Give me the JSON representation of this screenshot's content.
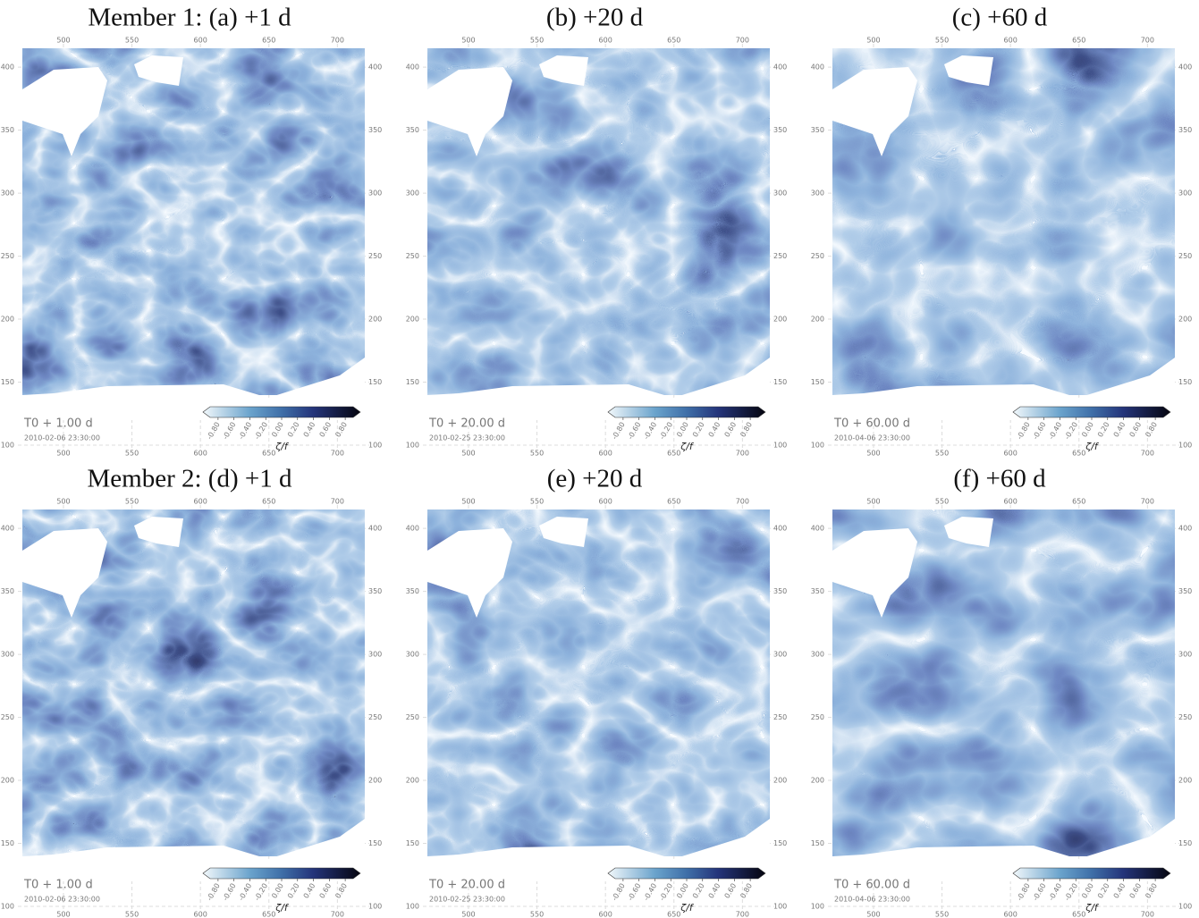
{
  "panels": [
    {
      "title": "Member 1: (a) +1 d",
      "time": "T0 + 1.00 d",
      "date": "2010-02-06 23:30:00"
    },
    {
      "title": "(b) +20 d",
      "time": "T0 + 20.00 d",
      "date": "2010-02-25 23:30:00"
    },
    {
      "title": "(c) +60 d",
      "time": "T0 + 60.00 d",
      "date": "2010-04-06 23:30:00"
    },
    {
      "title": "Member 2: (d) +1 d",
      "time": "T0 + 1.00 d",
      "date": "2010-02-06 23:30:00"
    },
    {
      "title": "(e) +20 d",
      "time": "T0 + 20.00 d",
      "date": "2010-02-25 23:30:00"
    },
    {
      "title": "(f) +60 d",
      "time": "T0 + 60.00 d",
      "date": "2010-04-06 23:30:00"
    }
  ],
  "xlim": [
    470,
    720
  ],
  "ylim": [
    100,
    415
  ],
  "xticks": [
    500,
    550,
    600,
    650,
    700
  ],
  "yticks": [
    100,
    150,
    200,
    250,
    300,
    350,
    400
  ],
  "colorbar": {
    "label": "ζ/f",
    "lim": [
      -0.9,
      0.9
    ],
    "ticks": [
      {
        "value": -0.8,
        "label": "-0.80"
      },
      {
        "value": -0.6,
        "label": "-0.60"
      },
      {
        "value": -0.4,
        "label": "-0.40"
      },
      {
        "value": -0.2,
        "label": "-0.20"
      },
      {
        "value": 0,
        "label": "0.00"
      },
      {
        "value": 0.2,
        "label": "0.20"
      },
      {
        "value": 0.4,
        "label": "0.40"
      },
      {
        "value": 0.6,
        "label": "0.60"
      },
      {
        "value": 0.8,
        "label": "0.80"
      }
    ]
  }
}
